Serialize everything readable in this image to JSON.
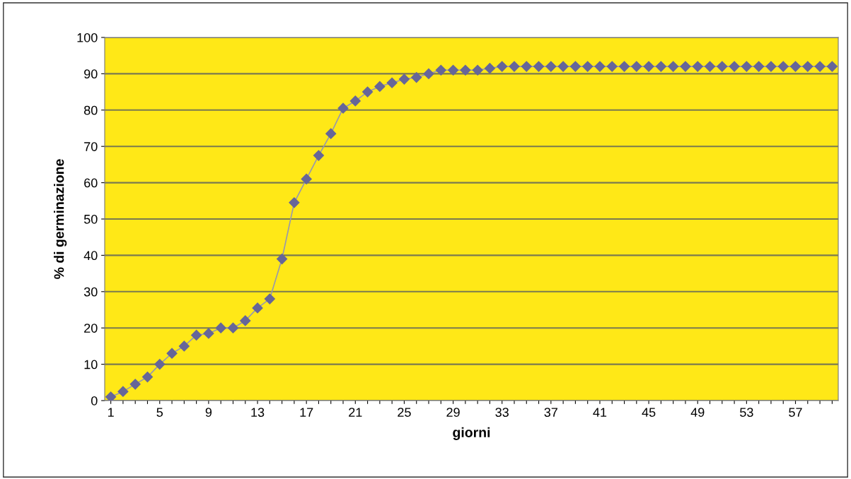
{
  "chart_data": {
    "type": "line",
    "xlabel": "giorni",
    "ylabel": "% di germinazione",
    "categories": [
      "1",
      null,
      null,
      null,
      "5",
      null,
      null,
      null,
      "9",
      null,
      null,
      null,
      "13",
      null,
      null,
      null,
      "17",
      null,
      null,
      null,
      "21",
      null,
      null,
      null,
      "25",
      null,
      null,
      null,
      "29",
      null,
      null,
      null,
      "33",
      null,
      null,
      null,
      "37",
      null,
      null,
      null,
      "41",
      null,
      null,
      null,
      "45",
      null,
      null,
      null,
      "49",
      null,
      null,
      null,
      "53",
      null,
      null,
      null,
      "57",
      null,
      null,
      null
    ],
    "series": [
      {
        "color": "#666699",
        "values": [
          1,
          2.5,
          4.5,
          6.5,
          10,
          13,
          15,
          18,
          18.5,
          20,
          20,
          22,
          25.5,
          28,
          39,
          54.5,
          61,
          67.5,
          73.5,
          80.5,
          82.5,
          85,
          86.5,
          87.5,
          88.5,
          89,
          90,
          91,
          91,
          91,
          91,
          91.5,
          92,
          92,
          92,
          92,
          92,
          92,
          92,
          92,
          92,
          92,
          92,
          92,
          92,
          92,
          92,
          92,
          92,
          92,
          92,
          92,
          92,
          92,
          92,
          92,
          92,
          92,
          92,
          92
        ]
      }
    ],
    "ylim": [
      0,
      100
    ],
    "yticks": [
      0,
      10,
      20,
      30,
      40,
      50,
      60,
      70,
      80,
      90,
      100
    ],
    "grid": "y",
    "marker": "diamond",
    "line_style": "solid",
    "legend": false
  }
}
